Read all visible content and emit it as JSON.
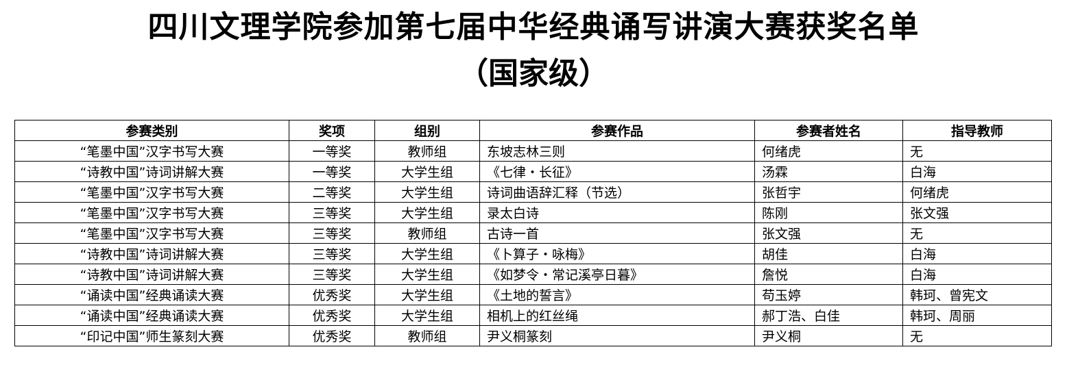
{
  "document": {
    "title": "四川文理学院参加第七届中华经典诵写讲演大赛获奖名单",
    "subtitle": "（国家级）"
  },
  "table": {
    "headers": [
      "参赛类别",
      "奖项",
      "组别",
      "参赛作品",
      "参赛者姓名",
      "指导教师"
    ],
    "rows": [
      [
        "“笔墨中国”汉字书写大赛",
        "一等奖",
        "教师组",
        "东坡志林三则",
        "何绪虎",
        "无"
      ],
      [
        "“诗教中国”诗词讲解大赛",
        "一等奖",
        "大学生组",
        "《七律・长征》",
        "汤霖",
        "白海"
      ],
      [
        "“笔墨中国”汉字书写大赛",
        "二等奖",
        "大学生组",
        "诗词曲语辞汇释（节选）",
        "张哲宇",
        "何绪虎"
      ],
      [
        "“笔墨中国”汉字书写大赛",
        "三等奖",
        "大学生组",
        "录太白诗",
        "陈刚",
        "张文强"
      ],
      [
        "“笔墨中国”汉字书写大赛",
        "三等奖",
        "教师组",
        "古诗一首",
        "张文强",
        "无"
      ],
      [
        "“诗教中国”诗词讲解大赛",
        "三等奖",
        "大学生组",
        "《卜算子・咏梅》",
        "胡佳",
        "白海"
      ],
      [
        "“诗教中国”诗词讲解大赛",
        "三等奖",
        "大学生组",
        "《如梦令・常记溪亭日暮》",
        "詹悦",
        "白海"
      ],
      [
        "“诵读中国”经典诵读大赛",
        "优秀奖",
        "大学生组",
        "《土地的誓言》",
        "苟玉婷",
        "韩珂、曾宪文"
      ],
      [
        "“诵读中国”经典诵读大赛",
        "优秀奖",
        "大学生组",
        "相机上的红丝绳",
        "郝丁浩、白佳",
        "韩珂、周丽"
      ],
      [
        "“印记中国”师生篆刻大赛",
        "优秀奖",
        "教师组",
        "尹义桐篆刻",
        "尹义桐",
        "无"
      ]
    ]
  }
}
